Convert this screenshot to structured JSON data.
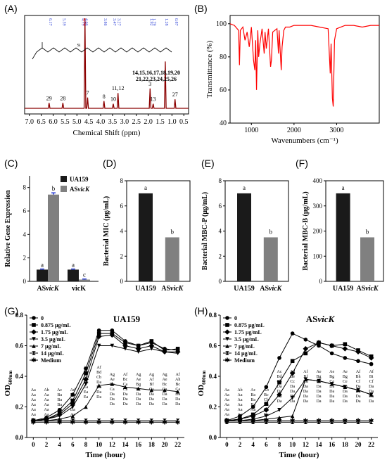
{
  "figure": {
    "panel_labels": [
      "(A)",
      "(B)",
      "(C)",
      "(D)",
      "(E)",
      "(F)",
      "(G)",
      "(H)"
    ]
  },
  "colors": {
    "nmr": "#8b0000",
    "ir": "#ff0000",
    "dark_bar": "#1a1a1a",
    "grey_bar": "#808080",
    "error_blue": "#2b3fd6",
    "line": "#000000"
  },
  "chart_data": [
    {
      "id": "A",
      "type": "line",
      "xlabel": "Chemical Shift (ppm)",
      "xticks": [
        "7.0",
        "6.5",
        "6.0",
        "5.5",
        "5.0",
        "4.5",
        "4.0",
        "3.5",
        "3.0",
        "2.5",
        "2.0",
        "1.5",
        "1.0",
        "0.5"
      ],
      "xlim": [
        7.2,
        0.3
      ],
      "peaks": [
        {
          "ppm": 6.17,
          "height": 0.06,
          "label": "29"
        },
        {
          "ppm": 5.59,
          "height": 0.06,
          "label": "28"
        },
        {
          "ppm": 4.66,
          "height": 1.0,
          "label": ""
        },
        {
          "ppm": 4.55,
          "height": 0.12,
          "label": "7"
        },
        {
          "ppm": 3.86,
          "height": 0.08,
          "label": "8"
        },
        {
          "ppm": 3.47,
          "height": 0.05,
          "label": "10"
        },
        {
          "ppm": 3.27,
          "height": 0.17,
          "label": "11,12"
        },
        {
          "ppm": 1.92,
          "height": 0.22,
          "label": "3"
        },
        {
          "ppm": 1.79,
          "height": 0.05,
          "label": "13"
        },
        {
          "ppm": 1.28,
          "height": 0.52,
          "label": ""
        },
        {
          "ppm": 0.87,
          "height": 0.1,
          "label": "27"
        }
      ],
      "shift_labels": [
        {
          "ppm": 6.17,
          "text": "6.17",
          "color": "#2b3fd6"
        },
        {
          "ppm": 5.59,
          "text": "5.59",
          "color": "#2b3fd6"
        },
        {
          "ppm": 4.79,
          "text": "4.79",
          "color": "#2b3fd6"
        },
        {
          "ppm": 4.74,
          "text": "4.74",
          "color": "#ff0000"
        },
        {
          "ppm": 4.66,
          "text": "4.66",
          "color": "#2b3fd6"
        },
        {
          "ppm": 3.86,
          "text": "3.86",
          "color": "#2b3fd6"
        },
        {
          "ppm": 3.47,
          "text": "3.47",
          "color": "#2b3fd6"
        },
        {
          "ppm": 3.27,
          "text": "3.27",
          "color": "#2b3fd6"
        },
        {
          "ppm": 1.92,
          "text": "1.92",
          "color": "#2b3fd6"
        },
        {
          "ppm": 1.79,
          "text": "1.79",
          "color": "#2b3fd6"
        },
        {
          "ppm": 1.28,
          "text": "1.28",
          "color": "#2b3fd6"
        },
        {
          "ppm": 0.87,
          "text": "0.87",
          "color": "#2b3fd6"
        }
      ],
      "cluster_label_1": "14,15,16,17,18,19,20",
      "cluster_label_2": "21,22,23,24,25,26"
    },
    {
      "id": "B",
      "type": "line",
      "xlabel": "Wavenumbers (cm⁻¹)",
      "ylabel": "Transmittance (%)",
      "xticks": [
        "1000",
        "2000",
        "3000"
      ],
      "yticks": [
        "40",
        "60",
        "80",
        "100"
      ],
      "xlim": [
        500,
        4000
      ],
      "ylim": [
        40,
        105
      ],
      "x": [
        500,
        600,
        700,
        720,
        740,
        800,
        850,
        900,
        950,
        1000,
        1050,
        1080,
        1100,
        1120,
        1150,
        1170,
        1200,
        1250,
        1300,
        1320,
        1350,
        1400,
        1450,
        1470,
        1500,
        1550,
        1600,
        1636,
        1650,
        1700,
        1720,
        1760,
        1800,
        1900,
        2000,
        2200,
        2400,
        2600,
        2800,
        2850,
        2870,
        2900,
        2920,
        2950,
        3000,
        3100,
        3200,
        3400,
        3600,
        3800,
        4000
      ],
      "y": [
        100,
        99,
        96,
        75,
        96,
        98,
        90,
        95,
        86,
        98,
        78,
        72,
        90,
        60,
        96,
        80,
        88,
        97,
        82,
        95,
        85,
        97,
        74,
        78,
        95,
        96,
        97,
        82,
        96,
        72,
        86,
        96,
        98,
        98,
        99,
        99,
        99,
        98,
        97,
        70,
        88,
        55,
        50,
        90,
        97,
        98,
        99,
        99,
        98,
        99,
        99
      ]
    },
    {
      "id": "C",
      "type": "bar",
      "ylabel": "Relative Gene Expression",
      "categories": [
        "AS",
        "vicK"
      ],
      "category_suffix": [
        "vicK",
        ""
      ],
      "series": [
        {
          "name": "UA159",
          "values": [
            1.0,
            1.0
          ],
          "errors": [
            0.05,
            0.05
          ],
          "letters": [
            "a",
            "a"
          ]
        },
        {
          "name": "AS",
          "name_italic": "vicK",
          "values": [
            7.4,
            0.15
          ],
          "errors": [
            0.15,
            0.05
          ],
          "letters": [
            "b",
            "c"
          ]
        }
      ],
      "ylim": [
        0,
        9
      ],
      "yticks": [
        "0",
        "2",
        "4",
        "6",
        "8"
      ]
    },
    {
      "id": "D",
      "type": "bar",
      "ylabel": "Bacterial MIC (μg/mL)",
      "categories": [
        "UA159",
        "AS"
      ],
      "category_suffix": [
        "",
        "vicK"
      ],
      "values": [
        7,
        3.5
      ],
      "letters": [
        "a",
        "b"
      ],
      "ylim": [
        0,
        8
      ],
      "yticks": [
        "0",
        "2",
        "4",
        "6",
        "8"
      ]
    },
    {
      "id": "E",
      "type": "bar",
      "ylabel": "Bacterial MBC-P (μg/mL)",
      "categories": [
        "UA159",
        "AS"
      ],
      "category_suffix": [
        "",
        "vicK"
      ],
      "values": [
        7,
        3.5
      ],
      "letters": [
        "a",
        "b"
      ],
      "ylim": [
        0,
        8
      ],
      "yticks": [
        "0",
        "2",
        "4",
        "6",
        "8"
      ]
    },
    {
      "id": "F",
      "type": "bar",
      "ylabel": "Bacterial MBC-B (μg/mL)",
      "categories": [
        "UA159",
        "AS"
      ],
      "category_suffix": [
        "",
        "vicK"
      ],
      "values": [
        350,
        175
      ],
      "letters": [
        "a",
        "b"
      ],
      "ylim": [
        0,
        400
      ],
      "yticks": [
        "0",
        "100",
        "200",
        "300",
        "400"
      ]
    },
    {
      "id": "G",
      "type": "line",
      "title": "UA159",
      "ylabel": "OD",
      "ylabel_sub": "600nm",
      "xlabel": "Time (hour)",
      "xlim": [
        -1,
        23
      ],
      "ylim": [
        0,
        0.8
      ],
      "xticks": [
        "0",
        "2",
        "4",
        "6",
        "8",
        "10",
        "12",
        "14",
        "16",
        "18",
        "20",
        "22"
      ],
      "yticks": [
        "0.0",
        "0.2",
        "0.4",
        "0.6",
        "0.8"
      ],
      "x": [
        0,
        2,
        4,
        6,
        8,
        10,
        12,
        14,
        16,
        18,
        20,
        22
      ],
      "series": [
        {
          "name": "0",
          "marker": "circle",
          "values": [
            0.11,
            0.13,
            0.18,
            0.28,
            0.45,
            0.7,
            0.7,
            0.63,
            0.6,
            0.62,
            0.58,
            0.57
          ]
        },
        {
          "name": "0.875 μg/mL",
          "marker": "square",
          "values": [
            0.11,
            0.12,
            0.16,
            0.24,
            0.42,
            0.68,
            0.68,
            0.62,
            0.6,
            0.63,
            0.57,
            0.58
          ]
        },
        {
          "name": "1.75 μg/mL",
          "marker": "diamond",
          "values": [
            0.11,
            0.12,
            0.15,
            0.22,
            0.38,
            0.66,
            0.67,
            0.6,
            0.58,
            0.6,
            0.56,
            0.56
          ]
        },
        {
          "name": "3.5 μg/mL",
          "marker": "triangle-down",
          "values": [
            0.11,
            0.12,
            0.14,
            0.2,
            0.35,
            0.6,
            0.6,
            0.58,
            0.56,
            0.58,
            0.56,
            0.55
          ]
        },
        {
          "name": "7 μg/mL",
          "marker": "triangle-up",
          "values": [
            0.11,
            0.11,
            0.12,
            0.14,
            0.2,
            0.34,
            0.35,
            0.33,
            0.32,
            0.31,
            0.31,
            0.3
          ]
        },
        {
          "name": "14 μg/mL",
          "marker": "hourglass",
          "values": [
            0.11,
            0.11,
            0.11,
            0.11,
            0.11,
            0.11,
            0.11,
            0.11,
            0.11,
            0.11,
            0.11,
            0.11
          ]
        },
        {
          "name": "Medium",
          "marker": "star",
          "values": [
            0.1,
            0.1,
            0.1,
            0.1,
            0.1,
            0.1,
            0.1,
            0.1,
            0.1,
            0.1,
            0.1,
            0.1
          ]
        }
      ],
      "letter_groups": [
        {
          "x": 0,
          "lines": [
            "Aa",
            "Aa",
            "Aa",
            "Aa",
            "Aa",
            "Aa",
            "Aa"
          ]
        },
        {
          "x": 2,
          "lines": [
            "Ab",
            "Aa",
            "Aa",
            "Aa",
            "Aa",
            "Aa",
            "Aa"
          ]
        },
        {
          "x": 4,
          "lines": [
            "Ac",
            "Ba",
            "Ba",
            "Ba",
            "Aa",
            "Aa",
            "Aa"
          ]
        },
        {
          "x": 6,
          "lines": [
            "Ad",
            "Bb",
            "Cb",
            "Ba",
            "Da",
            "Aa",
            "Aa"
          ]
        },
        {
          "x": 8,
          "lines": [
            "Ae",
            "Bc",
            "Cc",
            "Da",
            "Ea",
            "Ea",
            "Ea"
          ]
        },
        {
          "x": 10,
          "lines": [
            "Af",
            "Bd",
            "Cb",
            "Da",
            "Da",
            "Da",
            "Da"
          ]
        },
        {
          "x": 12,
          "lines": [
            "Ag",
            "Ae",
            "Bc",
            "Ca",
            "Da",
            "Da",
            "Da"
          ]
        },
        {
          "x": 14,
          "lines": [
            "Af",
            "Bc",
            "Ca",
            "Ca",
            "Da",
            "Da",
            "Da"
          ]
        },
        {
          "x": 16,
          "lines": [
            "Ag",
            "Ae",
            "Bg",
            "Cc",
            "Da",
            "Da",
            "Da"
          ]
        },
        {
          "x": 18,
          "lines": [
            "Ag",
            "Af",
            "Bf",
            "Ca",
            "Da",
            "Da",
            "Da"
          ]
        },
        {
          "x": 20,
          "lines": [
            "Ag",
            "Ae",
            "Bc",
            "Ca",
            "Da",
            "Da",
            "Da"
          ]
        },
        {
          "x": 22,
          "lines": [
            "Af",
            "Ah",
            "Bc",
            "Ca",
            "Da",
            "Da",
            "Da"
          ]
        }
      ]
    },
    {
      "id": "H",
      "type": "line",
      "title": "AS",
      "title_italic": "vicK",
      "ylabel": "OD",
      "ylabel_sub": "600nm",
      "xlabel": "Time (hour)",
      "xlim": [
        -1,
        23
      ],
      "ylim": [
        0,
        0.8
      ],
      "xticks": [
        "0",
        "2",
        "4",
        "6",
        "8",
        "10",
        "12",
        "14",
        "16",
        "18",
        "20",
        "22"
      ],
      "yticks": [
        "0.0",
        "0.2",
        "0.4",
        "0.6",
        "0.8"
      ],
      "x": [
        0,
        2,
        4,
        6,
        8,
        10,
        12,
        14,
        16,
        18,
        20,
        22
      ],
      "series": [
        {
          "name": "0",
          "marker": "circle",
          "values": [
            0.11,
            0.14,
            0.2,
            0.33,
            0.52,
            0.68,
            0.64,
            0.6,
            0.55,
            0.52,
            0.5,
            0.48
          ]
        },
        {
          "name": "0.875 μg/mL",
          "marker": "square",
          "values": [
            0.11,
            0.12,
            0.15,
            0.22,
            0.36,
            0.5,
            0.55,
            0.62,
            0.6,
            0.61,
            0.57,
            0.53
          ]
        },
        {
          "name": "1.75 μg/mL",
          "marker": "diamond",
          "values": [
            0.11,
            0.12,
            0.14,
            0.18,
            0.28,
            0.42,
            0.58,
            0.62,
            0.6,
            0.58,
            0.56,
            0.52
          ]
        },
        {
          "name": "3.5 μg/mL",
          "marker": "triangle-down",
          "values": [
            0.11,
            0.11,
            0.12,
            0.14,
            0.18,
            0.26,
            0.38,
            0.37,
            0.35,
            0.33,
            0.31,
            0.28
          ]
        },
        {
          "name": "7 μg/mL",
          "marker": "triangle-up",
          "values": [
            0.11,
            0.11,
            0.11,
            0.12,
            0.13,
            0.14,
            0.38,
            0.37,
            0.35,
            0.33,
            0.31,
            0.28
          ]
        },
        {
          "name": "14 μg/mL",
          "marker": "hourglass",
          "values": [
            0.1,
            0.1,
            0.1,
            0.1,
            0.1,
            0.1,
            0.1,
            0.1,
            0.1,
            0.1,
            0.1,
            0.1
          ]
        },
        {
          "name": "Medium",
          "marker": "star",
          "values": [
            0.11,
            0.11,
            0.11,
            0.11,
            0.11,
            0.11,
            0.11,
            0.11,
            0.11,
            0.11,
            0.11,
            0.11
          ]
        }
      ],
      "letter_groups": [
        {
          "x": 0,
          "lines": [
            "Aa",
            "Aa",
            "Aa",
            "Aa",
            "Aa",
            "Aa",
            "Aa"
          ]
        },
        {
          "x": 2,
          "lines": [
            "Ab",
            "Aa",
            "Aa",
            "Aa",
            "Aa",
            "Aa",
            "Aa"
          ]
        },
        {
          "x": 4,
          "lines": [
            "Ac",
            "Ba",
            "Ba",
            "Ba",
            "Aa",
            "Aa",
            "Aa"
          ]
        },
        {
          "x": 6,
          "lines": [
            "Ab",
            "Bc",
            "Cb",
            "Da",
            "Da",
            "Da",
            "Da"
          ]
        },
        {
          "x": 8,
          "lines": [
            "Ac",
            "Bd",
            "Cb",
            "Da",
            "Da",
            "Da",
            "Da"
          ]
        },
        {
          "x": 10,
          "lines": [
            "Ad",
            "Be",
            "Cc",
            "Da",
            "Da",
            "Da",
            "Da"
          ]
        },
        {
          "x": 12,
          "lines": [
            "Af",
            "Bf",
            "Cd",
            "Da",
            "Da",
            "Da",
            "Da"
          ]
        },
        {
          "x": 14,
          "lines": [
            "Ae",
            "Bg",
            "Cd",
            "Da",
            "Da",
            "Da",
            "Da"
          ]
        },
        {
          "x": 16,
          "lines": [
            "Ae",
            "Bg",
            "Ce",
            "Da",
            "Da",
            "Da",
            "Da"
          ]
        },
        {
          "x": 18,
          "lines": [
            "Ae",
            "Bg",
            "Ce",
            "Da",
            "Da",
            "Da",
            "Da"
          ]
        },
        {
          "x": 20,
          "lines": [
            "Af",
            "Bh",
            "Cf",
            "Da",
            "Da",
            "Da",
            "Da"
          ]
        },
        {
          "x": 22,
          "lines": [
            "Af",
            "Bi",
            "Cf",
            "Da",
            "Da",
            "Da",
            "Da"
          ]
        }
      ]
    }
  ]
}
